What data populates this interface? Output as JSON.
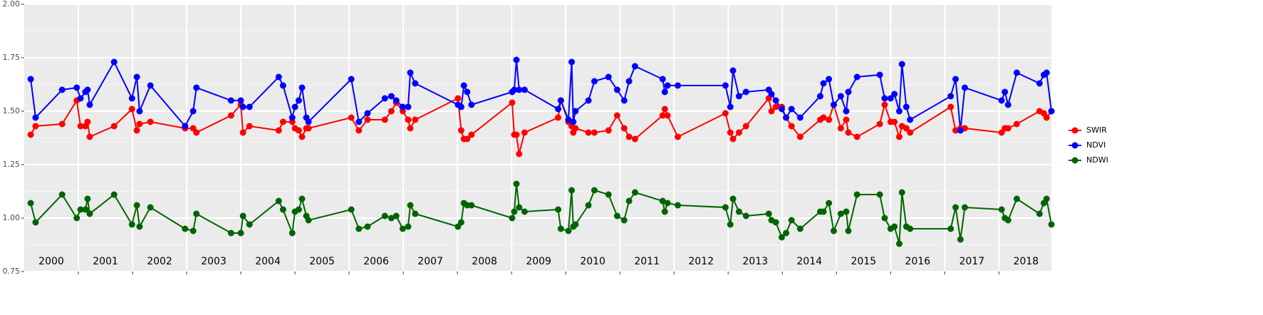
{
  "chart_data": {
    "type": "line",
    "x": [
      2000.12,
      2000.21,
      2000.7,
      2000.97,
      2001.04,
      2001.13,
      2001.17,
      2001.21,
      2001.66,
      2001.99,
      2002.08,
      2002.13,
      2002.33,
      2002.97,
      2003.12,
      2003.18,
      2003.82,
      2004.0,
      2004.04,
      2004.16,
      2004.7,
      2004.78,
      2004.95,
      2005.0,
      2005.07,
      2005.13,
      2005.21,
      2005.25,
      2006.04,
      2006.18,
      2006.34,
      2006.66,
      2006.78,
      2006.87,
      2006.99,
      2007.09,
      2007.13,
      2007.22,
      2008.01,
      2008.07,
      2008.12,
      2008.18,
      2008.26,
      2009.01,
      2009.05,
      2009.09,
      2009.14,
      2009.24,
      2009.86,
      2009.91,
      2010.05,
      2010.11,
      2010.14,
      2010.18,
      2010.42,
      2010.53,
      2010.79,
      2010.95,
      2011.08,
      2011.17,
      2011.28,
      2011.79,
      2011.83,
      2011.88,
      2012.07,
      2012.95,
      2013.04,
      2013.09,
      2013.2,
      2013.33,
      2013.75,
      2013.8,
      2013.88,
      2013.99,
      2014.07,
      2014.17,
      2014.33,
      2014.7,
      2014.76,
      2014.86,
      2014.95,
      2015.08,
      2015.18,
      2015.22,
      2015.38,
      2015.8,
      2015.89,
      2016.0,
      2016.07,
      2016.16,
      2016.21,
      2016.29,
      2016.36,
      2017.11,
      2017.2,
      2017.29,
      2017.37,
      2018.05,
      2018.11,
      2018.17,
      2018.33,
      2018.75,
      2018.83,
      2018.88,
      2018.97
    ],
    "series": [
      {
        "name": "SWIR",
        "color": "#ff0000",
        "values": [
          1.39,
          1.43,
          1.44,
          1.55,
          1.43,
          1.43,
          1.45,
          1.38,
          1.43,
          1.51,
          1.41,
          1.44,
          1.45,
          1.42,
          1.42,
          1.4,
          1.48,
          1.53,
          1.4,
          1.43,
          1.41,
          1.45,
          1.45,
          1.42,
          1.41,
          1.38,
          1.42,
          1.42,
          1.47,
          1.41,
          1.46,
          1.46,
          1.5,
          1.54,
          1.5,
          1.46,
          1.42,
          1.46,
          1.56,
          1.41,
          1.37,
          1.37,
          1.39,
          1.54,
          1.39,
          1.39,
          1.3,
          1.4,
          1.47,
          1.55,
          1.45,
          1.43,
          1.4,
          1.42,
          1.4,
          1.4,
          1.41,
          1.48,
          1.42,
          1.38,
          1.37,
          1.48,
          1.51,
          1.48,
          1.38,
          1.49,
          1.4,
          1.37,
          1.4,
          1.43,
          1.56,
          1.5,
          1.52,
          1.52,
          1.47,
          1.43,
          1.38,
          1.46,
          1.47,
          1.46,
          1.53,
          1.42,
          1.46,
          1.4,
          1.38,
          1.44,
          1.53,
          1.45,
          1.45,
          1.38,
          1.43,
          1.42,
          1.4,
          1.52,
          1.41,
          1.42,
          1.42,
          1.4,
          1.42,
          1.42,
          1.44,
          1.5,
          1.49,
          1.47,
          1.5
        ]
      },
      {
        "name": "NDVI",
        "color": "#0000ff",
        "values": [
          1.65,
          1.47,
          1.6,
          1.61,
          1.56,
          1.59,
          1.6,
          1.53,
          1.73,
          1.56,
          1.66,
          1.5,
          1.62,
          1.43,
          1.5,
          1.61,
          1.55,
          1.55,
          1.52,
          1.52,
          1.66,
          1.62,
          1.47,
          1.52,
          1.55,
          1.61,
          1.47,
          1.45,
          1.65,
          1.45,
          1.49,
          1.56,
          1.57,
          1.55,
          1.52,
          1.52,
          1.68,
          1.63,
          1.53,
          1.52,
          1.62,
          1.59,
          1.53,
          1.59,
          1.6,
          1.74,
          1.6,
          1.6,
          1.51,
          1.55,
          1.46,
          1.73,
          1.45,
          1.5,
          1.55,
          1.64,
          1.66,
          1.6,
          1.55,
          1.64,
          1.71,
          1.65,
          1.59,
          1.62,
          1.62,
          1.62,
          1.52,
          1.69,
          1.57,
          1.59,
          1.6,
          1.58,
          1.55,
          1.51,
          1.47,
          1.51,
          1.47,
          1.57,
          1.63,
          1.65,
          1.53,
          1.57,
          1.5,
          1.59,
          1.66,
          1.67,
          1.56,
          1.56,
          1.58,
          1.5,
          1.72,
          1.52,
          1.46,
          1.57,
          1.65,
          1.41,
          1.61,
          1.55,
          1.59,
          1.53,
          1.68,
          1.63,
          1.67,
          1.68,
          1.5
        ]
      },
      {
        "name": "NDWI",
        "color": "#006400",
        "values": [
          1.07,
          0.98,
          1.11,
          1.0,
          1.04,
          1.04,
          1.09,
          1.02,
          1.11,
          0.97,
          1.06,
          0.96,
          1.05,
          0.95,
          0.94,
          1.02,
          0.93,
          0.93,
          1.01,
          0.97,
          1.08,
          1.04,
          0.93,
          1.03,
          1.04,
          1.09,
          1.01,
          0.99,
          1.04,
          0.95,
          0.96,
          1.01,
          1.0,
          1.01,
          0.95,
          0.96,
          1.06,
          1.02,
          0.96,
          0.98,
          1.07,
          1.06,
          1.06,
          1.0,
          1.03,
          1.16,
          1.05,
          1.03,
          1.04,
          0.95,
          0.94,
          1.13,
          0.96,
          0.97,
          1.06,
          1.13,
          1.11,
          1.01,
          0.99,
          1.08,
          1.12,
          1.08,
          1.03,
          1.07,
          1.06,
          1.05,
          0.97,
          1.09,
          1.03,
          1.01,
          1.02,
          0.99,
          0.98,
          0.91,
          0.93,
          0.99,
          0.95,
          1.03,
          1.03,
          1.07,
          0.94,
          1.02,
          1.03,
          0.94,
          1.11,
          1.11,
          1.0,
          0.95,
          0.96,
          0.88,
          1.12,
          0.96,
          0.95,
          0.95,
          1.05,
          0.9,
          1.05,
          1.04,
          1.0,
          0.99,
          1.09,
          1.02,
          1.07,
          1.09,
          0.97
        ]
      }
    ],
    "xlim": [
      2000,
      2018.97
    ],
    "xticks": [
      {
        "value": 2000.5,
        "label": "2000"
      },
      {
        "value": 2001.5,
        "label": "2001"
      },
      {
        "value": 2002.5,
        "label": "2002"
      },
      {
        "value": 2003.5,
        "label": "2003"
      },
      {
        "value": 2004.5,
        "label": "2004"
      },
      {
        "value": 2005.5,
        "label": "2005"
      },
      {
        "value": 2006.5,
        "label": "2006"
      },
      {
        "value": 2007.5,
        "label": "2007"
      },
      {
        "value": 2008.5,
        "label": "2008"
      },
      {
        "value": 2009.5,
        "label": "2009"
      },
      {
        "value": 2010.5,
        "label": "2010"
      },
      {
        "value": 2011.5,
        "label": "2011"
      },
      {
        "value": 2012.5,
        "label": "2012"
      },
      {
        "value": 2013.5,
        "label": "2013"
      },
      {
        "value": 2014.5,
        "label": "2014"
      },
      {
        "value": 2015.5,
        "label": "2015"
      },
      {
        "value": 2016.5,
        "label": "2016"
      },
      {
        "value": 2017.5,
        "label": "2017"
      },
      {
        "value": 2018.5,
        "label": "2018"
      }
    ],
    "xgrid": [
      2001,
      2002,
      2003,
      2004,
      2005,
      2006,
      2007,
      2008,
      2009,
      2010,
      2011,
      2012,
      2013,
      2014,
      2015,
      2016,
      2017,
      2018
    ],
    "ylim": [
      0.75,
      2
    ],
    "yticks": [
      {
        "value": 0.75,
        "label": "0.75"
      },
      {
        "value": 1,
        "label": "1.00"
      },
      {
        "value": 1.25,
        "label": "1.25"
      },
      {
        "value": 1.5,
        "label": "1.50"
      },
      {
        "value": 1.75,
        "label": "1.75"
      },
      {
        "value": 2,
        "label": "2.00"
      }
    ],
    "yminor": [
      0.875,
      1.125,
      1.375,
      1.625,
      1.875
    ],
    "grid": true,
    "legend": "right"
  }
}
